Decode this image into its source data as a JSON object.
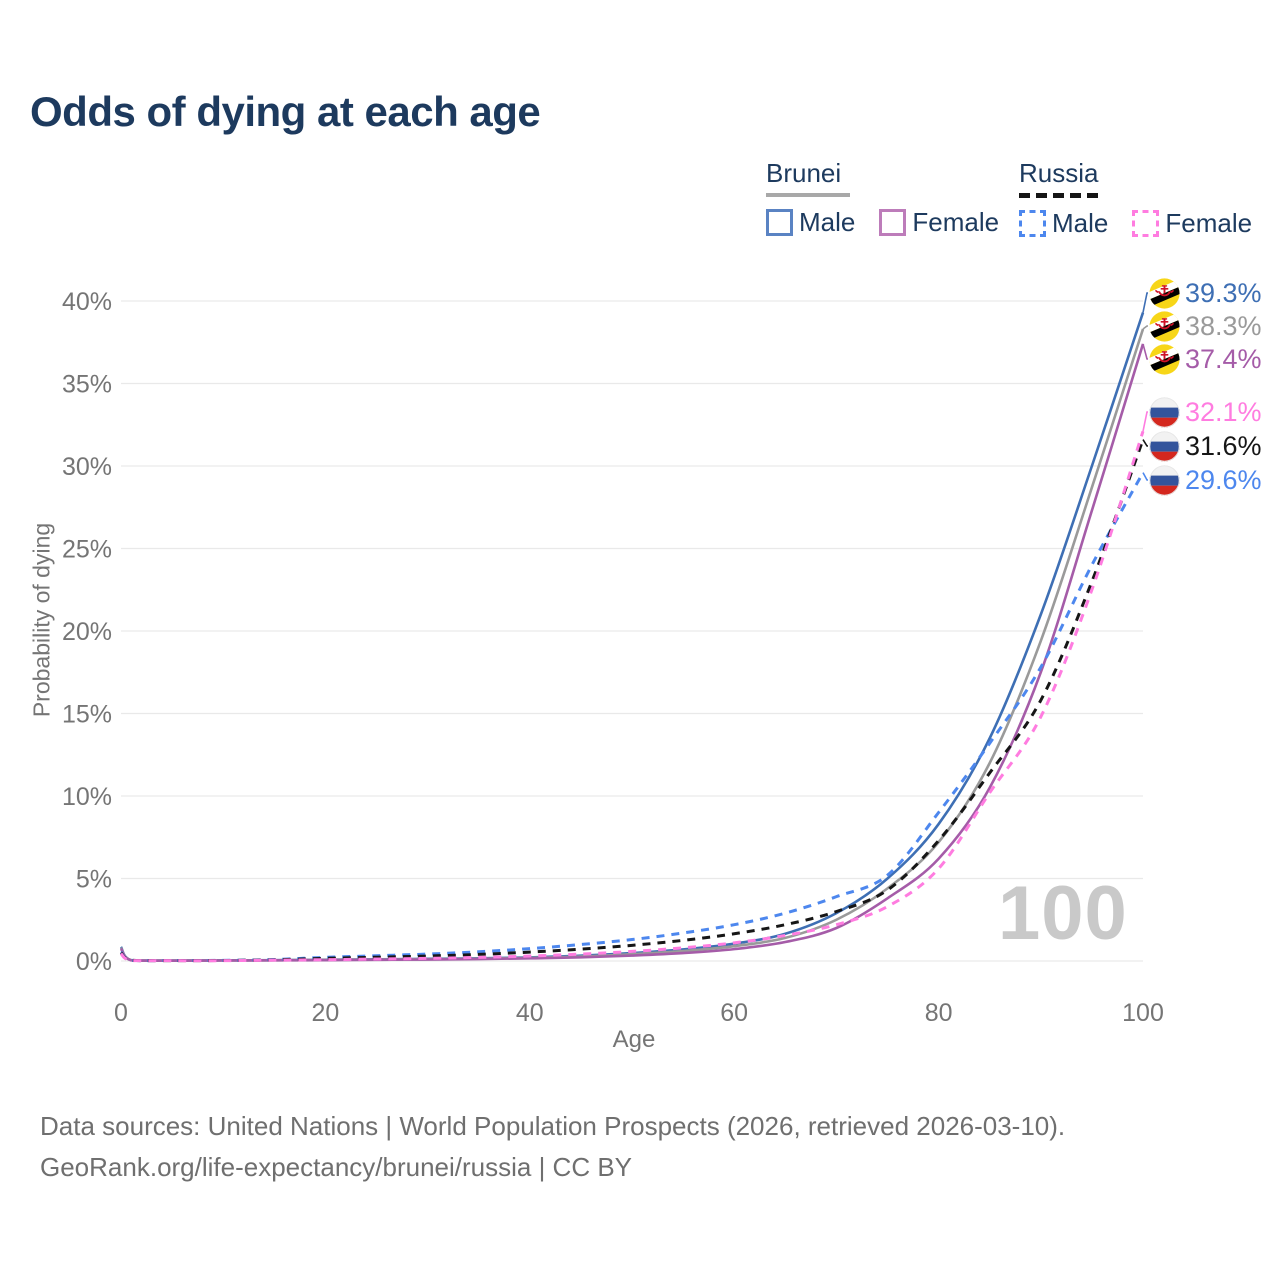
{
  "title": "Odds of dying at each age",
  "legend": {
    "brunei": {
      "label": "Brunei",
      "male": "Male",
      "female": "Female"
    },
    "russia": {
      "label": "Russia",
      "male": "Male",
      "female": "Female"
    }
  },
  "watermark": "100",
  "footer": {
    "line1": "Data sources: United Nations | World Population Prospects (2026, retrieved 2026-03-10).",
    "line2": "GeoRank.org/life-expectancy/brunei/russia | CC BY"
  },
  "colors": {
    "title_text": "#1d3a5e",
    "axis_text": "#757575",
    "grid": "#e9e9e9",
    "watermark": "#c9c9c9",
    "footer_text": "#6f6f6f",
    "brunei_male": "#3e6fb4",
    "brunei_both": "#9a9a9a",
    "brunei_female": "#a55ca8",
    "russia_male": "#4d87ee",
    "russia_both": "#161616",
    "russia_female": "#ff7ce0"
  },
  "chart_data": {
    "type": "line",
    "title": "Odds of dying at each age",
    "xlabel": "Age",
    "ylabel": "Probability of dying",
    "xlim": [
      0,
      100
    ],
    "ylim": [
      0,
      40
    ],
    "grid": "horizontal",
    "x_ticks": [
      0,
      20,
      40,
      60,
      80,
      100
    ],
    "y_ticks": [
      "0%",
      "5%",
      "10%",
      "15%",
      "20%",
      "25%",
      "30%",
      "35%",
      "40%"
    ],
    "hover_age_indicator": "100",
    "x": [
      0,
      1,
      5,
      10,
      15,
      20,
      25,
      30,
      35,
      40,
      45,
      50,
      55,
      60,
      65,
      70,
      75,
      80,
      85,
      90,
      95,
      100
    ],
    "series": [
      {
        "name": "Brunei Male",
        "country": "Brunei",
        "sex": "Male",
        "style": "solid",
        "color": "#3e6fb4",
        "values": [
          0.85,
          0.05,
          0.03,
          0.04,
          0.05,
          0.08,
          0.1,
          0.13,
          0.16,
          0.22,
          0.32,
          0.48,
          0.7,
          1.05,
          1.65,
          2.9,
          5.0,
          8.3,
          13.5,
          21.0,
          30.0,
          39.3
        ],
        "end_label": "39.3%",
        "flag": "BN"
      },
      {
        "name": "Brunei Both sexes",
        "country": "Brunei",
        "sex": "Both",
        "style": "solid",
        "color": "#9a9a9a",
        "values": [
          0.8,
          0.05,
          0.03,
          0.03,
          0.04,
          0.07,
          0.09,
          0.11,
          0.14,
          0.19,
          0.27,
          0.41,
          0.6,
          0.9,
          1.4,
          2.5,
          4.4,
          7.2,
          12.0,
          19.4,
          28.7,
          38.3
        ],
        "end_label": "38.3%",
        "flag": "BN"
      },
      {
        "name": "Brunei Female",
        "country": "Brunei",
        "sex": "Female",
        "style": "solid",
        "color": "#a55ca8",
        "values": [
          0.75,
          0.04,
          0.02,
          0.03,
          0.04,
          0.05,
          0.07,
          0.09,
          0.12,
          0.16,
          0.22,
          0.33,
          0.48,
          0.72,
          1.15,
          2.0,
          3.8,
          6.2,
          10.5,
          17.5,
          27.3,
          37.4
        ],
        "end_label": "37.4%",
        "flag": "BN"
      },
      {
        "name": "Russia Male",
        "country": "Russia",
        "sex": "Male",
        "style": "dashed",
        "color": "#4d87ee",
        "values": [
          0.55,
          0.04,
          0.03,
          0.04,
          0.09,
          0.22,
          0.32,
          0.42,
          0.56,
          0.75,
          1.0,
          1.3,
          1.7,
          2.2,
          2.9,
          3.9,
          5.2,
          9.0,
          13.2,
          17.8,
          24.0,
          29.6
        ],
        "end_label": "29.6%",
        "flag": "RU"
      },
      {
        "name": "Russia Both sexes",
        "country": "Russia",
        "sex": "Both",
        "style": "dashed",
        "color": "#161616",
        "values": [
          0.5,
          0.04,
          0.02,
          0.03,
          0.07,
          0.16,
          0.23,
          0.3,
          0.4,
          0.54,
          0.72,
          0.95,
          1.25,
          1.65,
          2.2,
          3.0,
          4.3,
          7.3,
          11.4,
          15.8,
          23.0,
          31.6
        ],
        "end_label": "31.6%",
        "flag": "RU"
      },
      {
        "name": "Russia Female",
        "country": "Russia",
        "sex": "Female",
        "style": "dashed",
        "color": "#ff7ce0",
        "values": [
          0.45,
          0.03,
          0.02,
          0.02,
          0.05,
          0.08,
          0.12,
          0.16,
          0.22,
          0.3,
          0.42,
          0.58,
          0.8,
          1.1,
          1.55,
          2.2,
          3.3,
          5.6,
          10.2,
          14.8,
          22.5,
          32.1
        ],
        "end_label": "32.1%",
        "flag": "RU"
      }
    ]
  }
}
